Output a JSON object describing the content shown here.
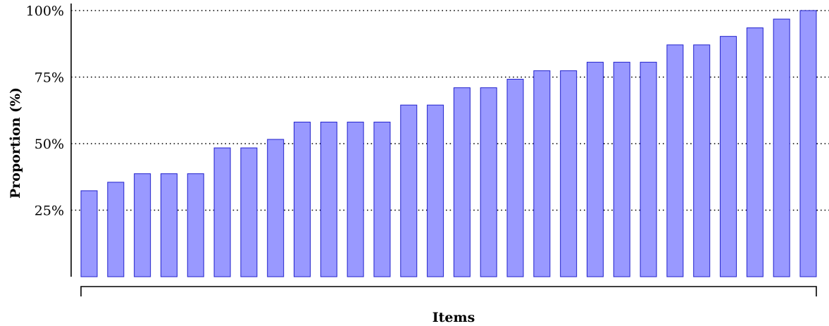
{
  "chart_data": {
    "type": "bar",
    "title": "",
    "xlabel": "Items",
    "ylabel": "Proportion (%)",
    "ylim": [
      0,
      100
    ],
    "yticks": [
      25,
      50,
      75,
      100
    ],
    "ytick_labels": [
      "25%",
      "50%",
      "75%",
      "100%"
    ],
    "grid": "horizontal dotted",
    "values": [
      32.3,
      35.5,
      38.7,
      38.7,
      38.7,
      48.4,
      48.4,
      51.6,
      58.1,
      58.1,
      58.1,
      58.1,
      64.5,
      64.5,
      71.0,
      71.0,
      74.2,
      77.4,
      77.4,
      80.6,
      80.6,
      80.6,
      87.1,
      87.1,
      90.3,
      93.5,
      96.8,
      100.0
    ],
    "colors": {
      "bar_fill": "#9999ff",
      "bar_stroke": "#2222cc",
      "axis": "#000000",
      "grid": "#000000"
    }
  }
}
